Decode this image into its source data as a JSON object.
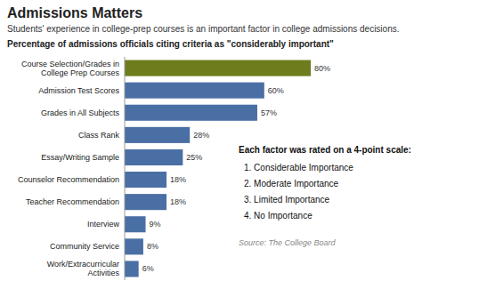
{
  "chart_data": {
    "type": "bar",
    "orientation": "horizontal",
    "title": "Admissions Matters",
    "subtitle": "Students' experience in college-prep courses is an important factor in college admissions decisions.",
    "annotations": [
      "Percentage of admissions officials citing criteria as \"considerably important\"",
      "Each factor was rated on a 4-point scale:",
      "1.  Considerable Importance",
      "2.  Moderate Importance",
      "3.  Limited Importance",
      "4.  No Importance",
      "Source: The College Board"
    ],
    "categories": [
      "Work/Extracurricular\nActivities",
      "Community Service",
      "Interview",
      "Teacher Recommendation",
      "Counselor Recommendation",
      "Essay/Writing Sample",
      "Class Rank",
      "Grades in All Subjects",
      "Admission Test Scores",
      "Course Selection/Grades in\nCollege Prep Courses"
    ],
    "values": [
      6,
      8,
      9,
      18,
      18,
      25,
      28,
      57,
      60,
      80
    ],
    "value_labels": [
      "6%",
      "8%",
      "9%",
      "18%",
      "18%",
      "25%",
      "28%",
      "57%",
      "60%",
      "80%"
    ],
    "colors": [
      "#4a6fa5",
      "#4a6fa5",
      "#4a6fa5",
      "#4a6fa5",
      "#4a6fa5",
      "#4a6fa5",
      "#4a6fa5",
      "#4a6fa5",
      "#4a6fa5",
      "#6e7c1e"
    ],
    "xlim": [
      0,
      88
    ],
    "data_labels": true,
    "tick_labels": "y",
    "grid": false
  }
}
